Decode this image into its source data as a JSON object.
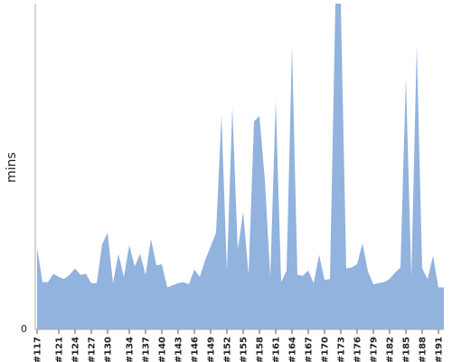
{
  "chart_data": {
    "type": "area",
    "ylabel": "mins",
    "y_zero_label": "0",
    "ylim": [
      0,
      310
    ],
    "grid": false,
    "color": "#91b3dd",
    "axis_color": "#aaaaaa",
    "x": [
      "#117",
      "#118",
      "#119",
      "#120",
      "#121",
      "#122",
      "#123",
      "#124",
      "#125",
      "#126",
      "#127",
      "#128",
      "#129",
      "#130",
      "#131",
      "#132",
      "#133",
      "#134",
      "#135",
      "#136",
      "#137",
      "#138",
      "#139",
      "#140",
      "#141",
      "#142",
      "#143",
      "#144",
      "#145",
      "#146",
      "#147",
      "#148",
      "#149",
      "#150",
      "#151",
      "#152",
      "#153",
      "#154",
      "#155",
      "#156",
      "#157",
      "#158",
      "#159",
      "#160",
      "#161",
      "#162",
      "#163",
      "#164",
      "#165",
      "#166",
      "#167",
      "#168",
      "#169",
      "#170",
      "#171",
      "#172",
      "#173",
      "#174",
      "#175",
      "#176",
      "#177",
      "#178",
      "#179",
      "#180",
      "#181",
      "#182",
      "#183",
      "#184",
      "#185",
      "#186",
      "#187",
      "#188",
      "#189",
      "#190",
      "#191",
      "#192"
    ],
    "values": [
      78,
      45,
      45,
      53,
      50,
      48,
      52,
      58,
      52,
      53,
      44,
      44,
      81,
      92,
      44,
      72,
      50,
      80,
      60,
      72,
      52,
      86,
      61,
      62,
      40,
      42,
      44,
      45,
      43,
      57,
      50,
      66,
      79,
      92,
      204,
      55,
      211,
      76,
      112,
      52,
      198,
      203,
      142,
      50,
      218,
      45,
      56,
      270,
      52,
      51,
      56,
      44,
      71,
      47,
      48,
      330,
      500,
      58,
      59,
      62,
      82,
      55,
      43,
      44,
      45,
      48,
      54,
      59,
      240,
      50,
      270,
      58,
      48,
      70,
      40,
      40
    ],
    "tick_labels": [
      "#117",
      "#121",
      "#124",
      "#127",
      "#130",
      "#134",
      "#137",
      "#140",
      "#143",
      "#146",
      "#149",
      "#152",
      "#155",
      "#158",
      "#161",
      "#164",
      "#167",
      "#170",
      "#173",
      "#176",
      "#179",
      "#182",
      "#185",
      "#188",
      "#191"
    ],
    "tick_indices": [
      0,
      4,
      7,
      10,
      13,
      17,
      20,
      23,
      26,
      29,
      32,
      35,
      38,
      41,
      44,
      47,
      50,
      53,
      56,
      59,
      62,
      65,
      68,
      71,
      74
    ]
  }
}
